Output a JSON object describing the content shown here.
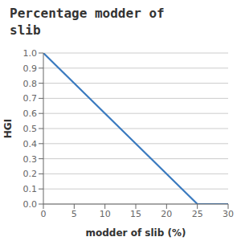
{
  "chart_data": {
    "type": "line",
    "title": "Percentage modder of\nslib",
    "xlabel": "modder of slib (%)",
    "ylabel": "HGI",
    "x": [
      0,
      25,
      30
    ],
    "values": [
      1.0,
      0.0,
      0.0
    ],
    "color": "#3a7abf",
    "xlim": [
      0,
      30
    ],
    "ylim": [
      0.0,
      1.0
    ],
    "xticks": [
      0,
      5,
      10,
      15,
      20,
      25,
      30
    ],
    "yticks": [
      {
        "value": 0,
        "label": "0.0"
      },
      0.1,
      0.2,
      0.3,
      0.4,
      0.5,
      0.6,
      0.7,
      0.8,
      0.9,
      {
        "value": 1,
        "label": "1.0"
      }
    ],
    "grid": "y"
  }
}
